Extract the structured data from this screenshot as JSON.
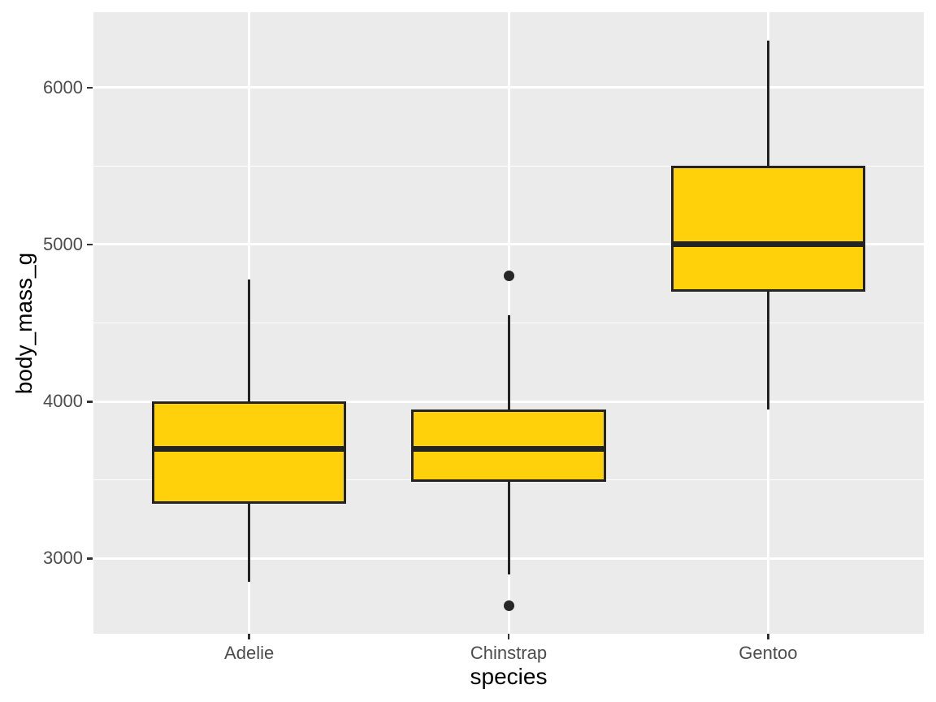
{
  "chart_data": {
    "type": "boxplot",
    "title": "",
    "xlabel": "species",
    "ylabel": "body_mass_g",
    "categories": [
      "Adelie",
      "Chinstrap",
      "Gentoo"
    ],
    "series": [
      {
        "name": "body_mass_g",
        "boxes": [
          {
            "category": "Adelie",
            "whisker_low": 2850,
            "q1": 3350,
            "median": 3700,
            "q3": 4000,
            "whisker_high": 4775,
            "outliers": []
          },
          {
            "category": "Chinstrap",
            "whisker_low": 2900,
            "q1": 3487.5,
            "median": 3700,
            "q3": 3950,
            "whisker_high": 4550,
            "outliers": [
              2700,
              4800
            ]
          },
          {
            "category": "Gentoo",
            "whisker_low": 3950,
            "q1": 4700,
            "median": 5000,
            "q3": 5500,
            "whisker_high": 6300,
            "outliers": []
          }
        ]
      }
    ],
    "ylim": [
      2520,
      6480
    ],
    "yticks_major": [
      3000,
      4000,
      5000,
      6000
    ],
    "ytick_labels": [
      "3000",
      "4000",
      "5000",
      "6000"
    ],
    "yticks_minor": [
      2500,
      3500,
      4500,
      5500,
      6500
    ],
    "grid": "major+minor, white on grey panel",
    "legend": "none",
    "style": {
      "panel_bg": "#EBEBEB",
      "grid_color": "#FFFFFF",
      "box_fill": "#FFD10A",
      "box_stroke": "#232323",
      "whisker_color": "#232323",
      "outlier_color": "#262626",
      "tick_mark_color": "#333333",
      "axis_text_color": "#4D4D4D",
      "axis_title_color": "#000000"
    }
  }
}
